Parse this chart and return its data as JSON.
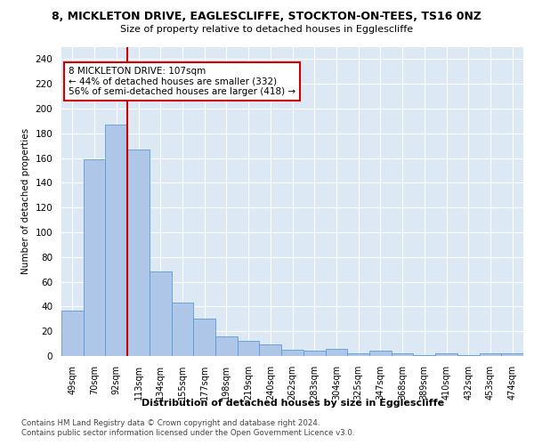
{
  "title1": "8, MICKLETON DRIVE, EAGLESCLIFFE, STOCKTON-ON-TEES, TS16 0NZ",
  "title2": "Size of property relative to detached houses in Egglescliffe",
  "xlabel": "Distribution of detached houses by size in Egglescliffe",
  "ylabel": "Number of detached properties",
  "categories": [
    "49sqm",
    "70sqm",
    "92sqm",
    "113sqm",
    "134sqm",
    "155sqm",
    "177sqm",
    "198sqm",
    "219sqm",
    "240sqm",
    "262sqm",
    "283sqm",
    "304sqm",
    "325sqm",
    "347sqm",
    "368sqm",
    "389sqm",
    "410sqm",
    "432sqm",
    "453sqm",
    "474sqm"
  ],
  "values": [
    37,
    159,
    187,
    167,
    68,
    43,
    30,
    16,
    12,
    9,
    5,
    4,
    6,
    2,
    4,
    2,
    1,
    2,
    1,
    2,
    2
  ],
  "bar_color": "#aec6e8",
  "bar_edge_color": "#5b9bd5",
  "vline_color": "#cc0000",
  "annotation_text": "8 MICKLETON DRIVE: 107sqm\n← 44% of detached houses are smaller (332)\n56% of semi-detached houses are larger (418) →",
  "annotation_box_color": "#ffffff",
  "annotation_box_edge": "#cc0000",
  "ylim": [
    0,
    250
  ],
  "yticks": [
    0,
    20,
    40,
    60,
    80,
    100,
    120,
    140,
    160,
    180,
    200,
    220,
    240
  ],
  "footer1": "Contains HM Land Registry data © Crown copyright and database right 2024.",
  "footer2": "Contains public sector information licensed under the Open Government Licence v3.0.",
  "bg_color": "#dce9f5",
  "fig_bg_color": "#ffffff",
  "grid_color": "#ffffff"
}
